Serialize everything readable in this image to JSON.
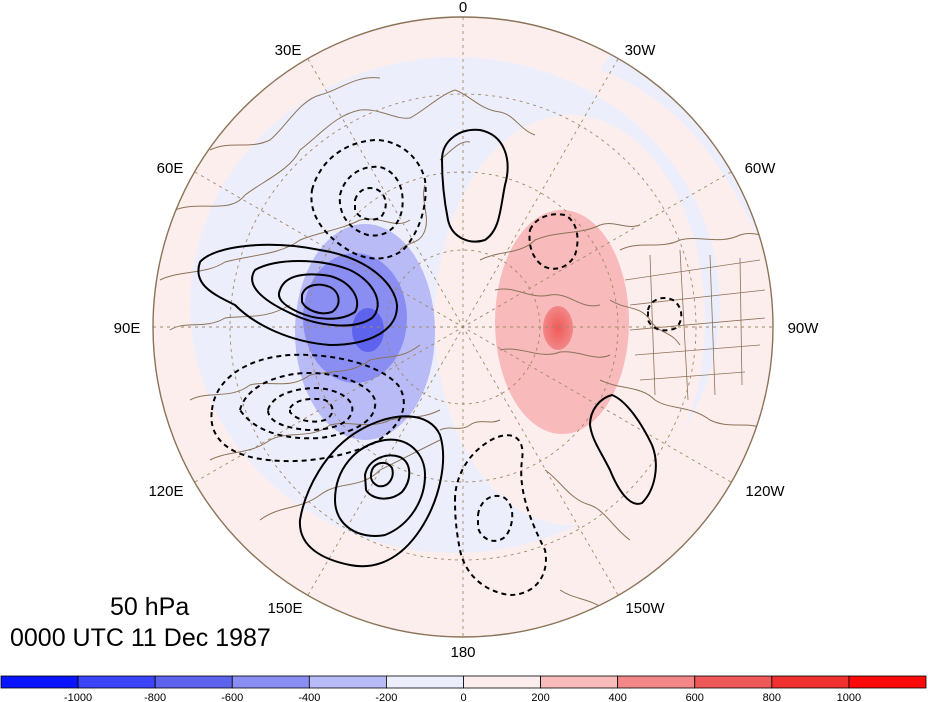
{
  "title": {
    "level": "50 hPa",
    "time": "0000 UTC 11 Dec 1987"
  },
  "longitude_labels": [
    "0",
    "30W",
    "60W",
    "90W",
    "120W",
    "150W",
    "180",
    "150E",
    "120E",
    "90E",
    "60E",
    "30E"
  ],
  "colorbar": {
    "colors": [
      "#0a14ff",
      "#3b44f6",
      "#5e63ee",
      "#8a8ef2",
      "#b9bbf7",
      "#edeefc",
      "#fdeeee",
      "#f8baba",
      "#f38787",
      "#ef5858",
      "#f03030",
      "#ff0a0a"
    ],
    "tick_labels": [
      "-1000",
      "-800",
      "-600",
      "-400",
      "-200",
      "0",
      "200",
      "400",
      "600",
      "800",
      "1000"
    ]
  },
  "colors": {
    "background": "#ffffff",
    "coast": "#8b7358",
    "grid": "#a08a68",
    "contour": "#000000"
  }
}
